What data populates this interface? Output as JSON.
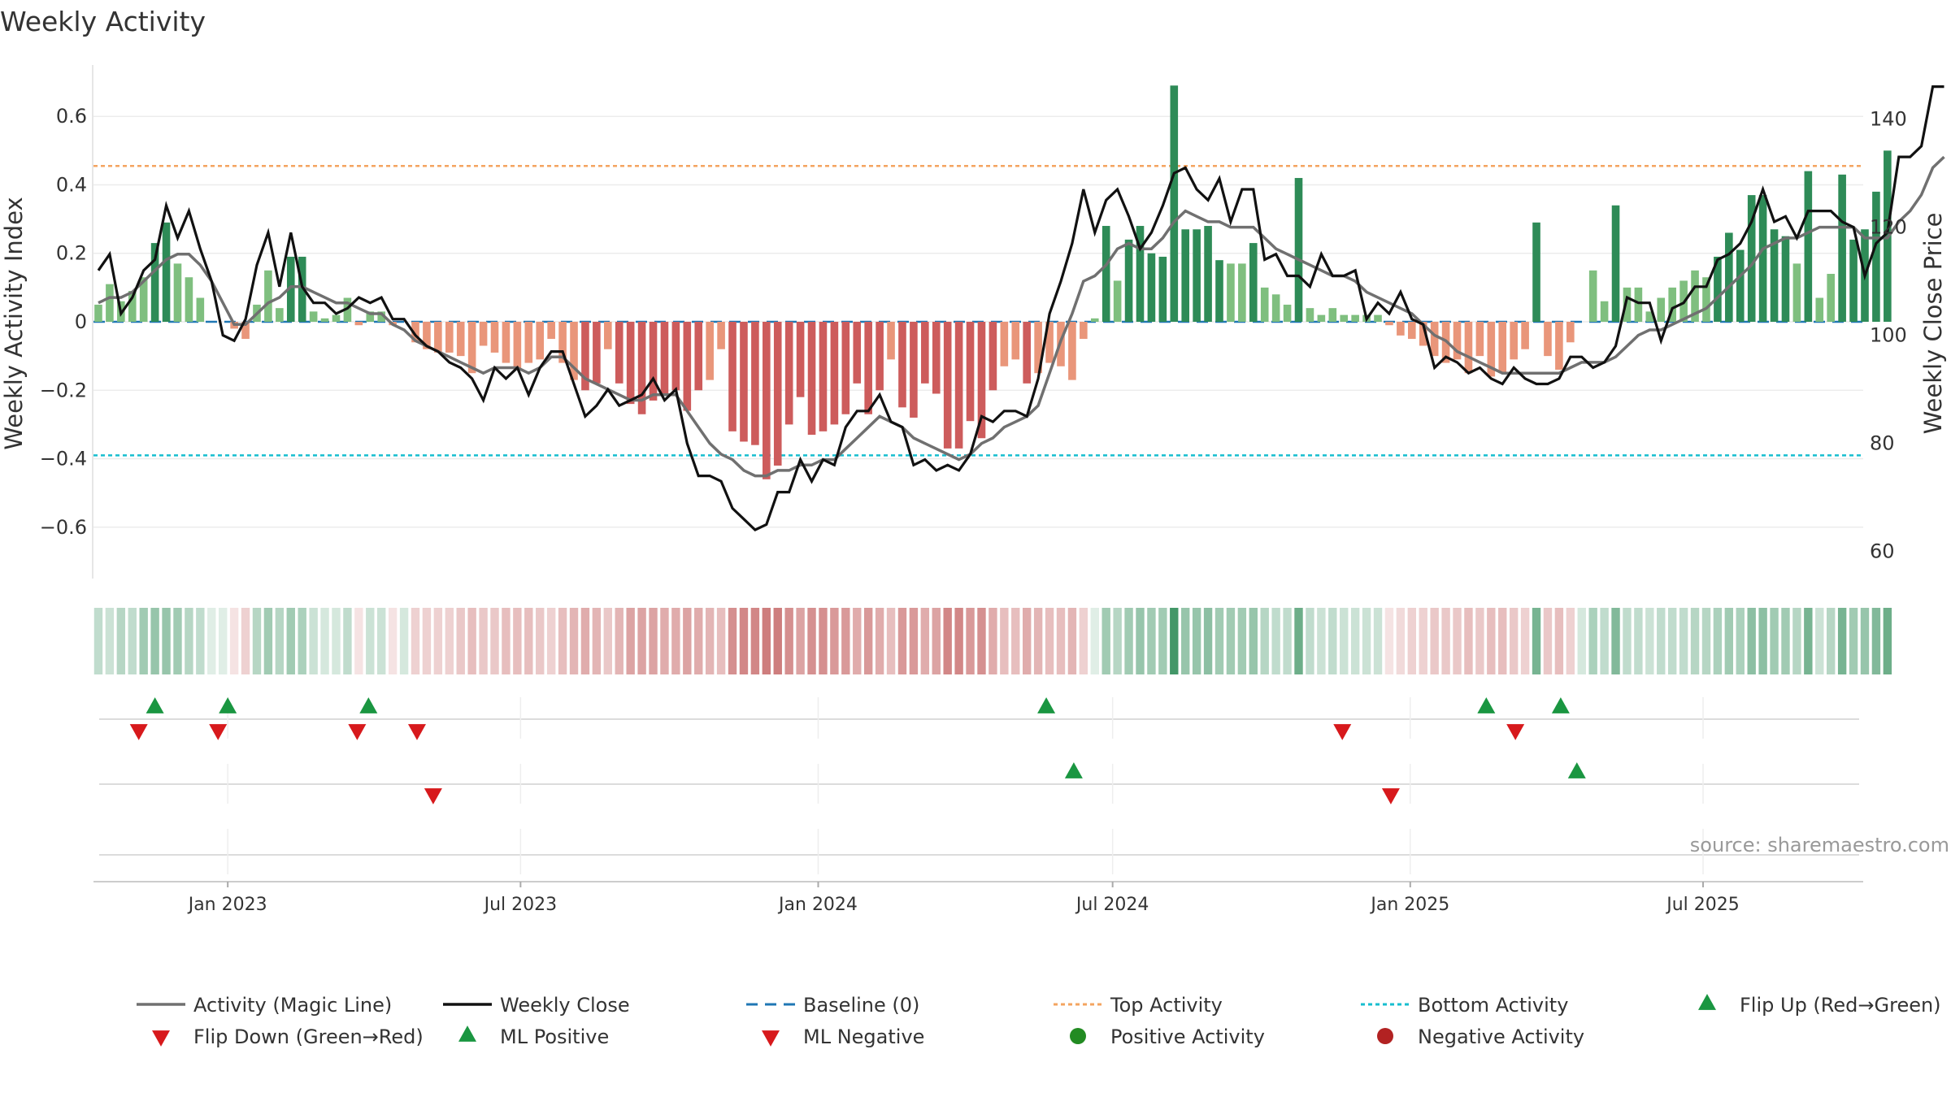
{
  "chart_data": {
    "type": "bar",
    "title": "Weekly Activity",
    "ylabel": "Weekly Activity Index",
    "y2label": "Weekly Close Price",
    "source": "source: sharemaestro.com",
    "ylim": [
      -0.75,
      0.75
    ],
    "y_ticks": [
      0.6,
      0.4,
      0.2,
      0,
      -0.2,
      -0.4,
      -0.6
    ],
    "y_tick_labels": [
      "0.6",
      "0.4",
      "0.2",
      "0",
      "−0.2",
      "−0.4",
      "−0.6"
    ],
    "y2lim": [
      55,
      150
    ],
    "y2_ticks": [
      140,
      120,
      100,
      80,
      60
    ],
    "x_range": [
      "2022-10-10",
      "2025-10-08"
    ],
    "x_ticks": [
      "2023-01-01",
      "2023-07-01",
      "2024-01-01",
      "2024-07-01",
      "2025-01-01",
      "2025-07-01"
    ],
    "x_tick_labels": [
      "Jan 2023",
      "Jul 2023",
      "Jan 2024",
      "Jul 2024",
      "Jan 2025",
      "Jul 2025"
    ],
    "top_activity": 0.455,
    "bottom_activity": -0.39,
    "baseline": 0,
    "start_date": "2022-10-13",
    "week_step_days": 7,
    "activity": [
      0.05,
      0.11,
      0.06,
      0.09,
      0.13,
      0.23,
      0.29,
      0.17,
      0.13,
      0.07,
      0.0,
      0.0,
      -0.02,
      -0.05,
      0.05,
      0.15,
      0.04,
      0.19,
      0.19,
      0.03,
      0.01,
      0.02,
      0.07,
      -0.01,
      0.03,
      0.03,
      -0.01,
      0.0,
      -0.06,
      -0.08,
      -0.09,
      -0.09,
      -0.1,
      -0.15,
      -0.07,
      -0.09,
      -0.12,
      -0.14,
      -0.12,
      -0.11,
      -0.05,
      -0.12,
      -0.17,
      -0.2,
      -0.18,
      -0.08,
      -0.18,
      -0.24,
      -0.27,
      -0.23,
      -0.21,
      -0.2,
      -0.26,
      -0.2,
      -0.17,
      -0.08,
      -0.32,
      -0.35,
      -0.36,
      -0.46,
      -0.42,
      -0.3,
      -0.22,
      -0.33,
      -0.32,
      -0.3,
      -0.27,
      -0.18,
      -0.27,
      -0.2,
      -0.11,
      -0.25,
      -0.28,
      -0.18,
      -0.21,
      -0.37,
      -0.37,
      -0.29,
      -0.34,
      -0.2,
      -0.13,
      -0.11,
      -0.18,
      -0.15,
      -0.12,
      -0.13,
      -0.17,
      -0.05,
      0.01,
      0.28,
      0.12,
      0.24,
      0.28,
      0.2,
      0.19,
      0.69,
      0.27,
      0.27,
      0.28,
      0.18,
      0.17,
      0.17,
      0.23,
      0.1,
      0.08,
      0.05,
      0.42,
      0.04,
      0.02,
      0.04,
      0.02,
      0.02,
      0.02,
      0.02,
      -0.01,
      -0.04,
      -0.05,
      -0.07,
      -0.1,
      -0.12,
      -0.11,
      -0.15,
      -0.1,
      -0.16,
      -0.15,
      -0.11,
      -0.08,
      0.29,
      -0.1,
      -0.14,
      -0.06,
      0.0,
      0.15,
      0.06,
      0.34,
      0.1,
      0.1,
      0.03,
      0.07,
      0.1,
      0.12,
      0.15,
      0.13,
      0.19,
      0.26,
      0.21,
      0.37,
      0.37,
      0.27,
      0.25,
      0.17,
      0.44,
      0.07,
      0.14,
      0.43,
      0.24,
      0.27,
      0.38,
      0.5
    ],
    "close": [
      112,
      115,
      104,
      107,
      112,
      114,
      124,
      118,
      123,
      116,
      110,
      100,
      99,
      103,
      113,
      119,
      109,
      119,
      109,
      106,
      106,
      104,
      105,
      107,
      106,
      107,
      103,
      103,
      100,
      98,
      97,
      95,
      94,
      92,
      88,
      94,
      92,
      94,
      89,
      94,
      97,
      97,
      91,
      85,
      87,
      90,
      87,
      88,
      89,
      92,
      88,
      90,
      80,
      74,
      74,
      73,
      68,
      66,
      64,
      65,
      71,
      71,
      77,
      73,
      77,
      76,
      83,
      86,
      86,
      89,
      84,
      83,
      76,
      77,
      75,
      76,
      75,
      78,
      85,
      84,
      86,
      86,
      85,
      92,
      104,
      110,
      117,
      127,
      119,
      125,
      127,
      122,
      116,
      119,
      124,
      130,
      131,
      127,
      125,
      129,
      121,
      127,
      127,
      114,
      115,
      111,
      111,
      109,
      115,
      111,
      111,
      112,
      103,
      106,
      104,
      108,
      103,
      102,
      94,
      96,
      95,
      93,
      94,
      92,
      91,
      94,
      92,
      91,
      91,
      92,
      96,
      96,
      94,
      95,
      98,
      107,
      106,
      106,
      99,
      105,
      106,
      109,
      109,
      114,
      115,
      117,
      121,
      127,
      121,
      122,
      118,
      123,
      123,
      123,
      121,
      120,
      111,
      117,
      119,
      133,
      133,
      135,
      146,
      146
    ],
    "magic_line": [
      106,
      107,
      107,
      108,
      110,
      112,
      114,
      115,
      115,
      113,
      110,
      106,
      102,
      102,
      104,
      106,
      107,
      109,
      109,
      108,
      107,
      106,
      106,
      105,
      104,
      104,
      102,
      101,
      99,
      98,
      97,
      96,
      95,
      94,
      93,
      94,
      94,
      94,
      93,
      94,
      96,
      96,
      94,
      92,
      91,
      90,
      89,
      88,
      88,
      89,
      89,
      89,
      86,
      83,
      80,
      78,
      77,
      75,
      74,
      74,
      75,
      75,
      76,
      76,
      77,
      77,
      79,
      81,
      83,
      85,
      84,
      83,
      81,
      80,
      79,
      78,
      77,
      78,
      80,
      81,
      83,
      84,
      85,
      87,
      93,
      99,
      104,
      110,
      111,
      113,
      116,
      117,
      116,
      116,
      118,
      121,
      123,
      122,
      121,
      121,
      120,
      120,
      120,
      118,
      116,
      115,
      114,
      113,
      112,
      111,
      111,
      110,
      108,
      107,
      106,
      105,
      104,
      102,
      100,
      99,
      97,
      96,
      95,
      94,
      93,
      93,
      93,
      93,
      93,
      93,
      94,
      95,
      95,
      95,
      96,
      98,
      100,
      101,
      101,
      102,
      103,
      104,
      105,
      107,
      109,
      111,
      113,
      116,
      117,
      118,
      118,
      119,
      120,
      120,
      120,
      120,
      118,
      118,
      118,
      121,
      123,
      126,
      131,
      133
    ],
    "strip_levels": [
      0.3,
      0.25,
      0.35,
      0.3,
      0.45,
      0.5,
      0.5,
      0.45,
      0.35,
      0.3,
      0.15,
      0.15,
      0.15,
      0.25,
      0.35,
      0.45,
      0.35,
      0.45,
      0.4,
      0.25,
      0.2,
      0.2,
      0.3,
      0.15,
      0.25,
      0.25,
      0.15,
      0.2,
      0.25,
      0.25,
      0.25,
      0.25,
      0.3,
      0.35,
      0.3,
      0.3,
      0.35,
      0.35,
      0.35,
      0.3,
      0.25,
      0.35,
      0.4,
      0.45,
      0.4,
      0.3,
      0.4,
      0.5,
      0.5,
      0.5,
      0.45,
      0.45,
      0.5,
      0.45,
      0.4,
      0.35,
      0.6,
      0.65,
      0.65,
      0.7,
      0.7,
      0.6,
      0.5,
      0.6,
      0.6,
      0.55,
      0.55,
      0.45,
      0.55,
      0.45,
      0.35,
      0.55,
      0.55,
      0.45,
      0.5,
      0.65,
      0.65,
      0.55,
      0.6,
      0.45,
      0.35,
      0.35,
      0.45,
      0.4,
      0.35,
      0.35,
      0.4,
      0.25,
      0.15,
      0.45,
      0.35,
      0.45,
      0.5,
      0.45,
      0.45,
      0.9,
      0.5,
      0.5,
      0.55,
      0.45,
      0.45,
      0.45,
      0.5,
      0.35,
      0.3,
      0.3,
      0.7,
      0.3,
      0.25,
      0.3,
      0.25,
      0.25,
      0.25,
      0.25,
      0.15,
      0.2,
      0.25,
      0.25,
      0.3,
      0.3,
      0.3,
      0.35,
      0.3,
      0.35,
      0.35,
      0.3,
      0.25,
      0.65,
      0.3,
      0.35,
      0.25,
      0.2,
      0.4,
      0.3,
      0.6,
      0.3,
      0.3,
      0.25,
      0.3,
      0.3,
      0.3,
      0.35,
      0.35,
      0.4,
      0.45,
      0.4,
      0.55,
      0.55,
      0.45,
      0.45,
      0.35,
      0.65,
      0.25,
      0.35,
      0.65,
      0.45,
      0.5,
      0.6,
      0.7
    ],
    "flip_up_dates": [
      "2022-11-17",
      "2023-01-01",
      "2023-03-29",
      "2024-05-21",
      "2025-02-17",
      "2025-04-04"
    ],
    "flip_down_dates": [
      "2022-11-07",
      "2022-12-26",
      "2023-03-22",
      "2023-04-28",
      "2024-11-20",
      "2025-03-07"
    ],
    "ml_positive_dates": [
      "2024-06-07",
      "2025-04-14"
    ],
    "ml_negative_dates": [
      "2023-05-08",
      "2024-12-20"
    ],
    "colors": {
      "pos_strong": "#2e8b57",
      "pos_light": "#7fbf7f",
      "neg_strong": "#cd5c5c",
      "neg_light": "#e9967a",
      "magic_line": "#707070",
      "close_line": "#111111",
      "baseline": "#1f77b4",
      "top_activity": "#f4a460",
      "bottom_activity": "#17becf",
      "flip_up": "#1a9641",
      "flip_down": "#d7191c",
      "positive_dot": "#228b22",
      "negative_dot": "#b22222"
    },
    "legend": [
      {
        "label": "Activity (Magic Line)",
        "marker": "grey-line"
      },
      {
        "label": "Weekly Close",
        "marker": "black-line"
      },
      {
        "label": "Baseline (0)",
        "marker": "blue-dashed-line"
      },
      {
        "label": "Top Activity",
        "marker": "orange-dotted-line"
      },
      {
        "label": "Bottom Activity",
        "marker": "cyan-dotted-line"
      },
      {
        "label": "Flip Up (Red→Green)",
        "marker": "green-up-triangle"
      },
      {
        "label": "Flip Down (Green→Red)",
        "marker": "red-down-triangle"
      },
      {
        "label": "ML Positive",
        "marker": "green-up-triangle"
      },
      {
        "label": "ML Negative",
        "marker": "red-down-triangle"
      },
      {
        "label": "Positive Activity",
        "marker": "green-dot"
      },
      {
        "label": "Negative Activity",
        "marker": "red-dot"
      }
    ]
  }
}
